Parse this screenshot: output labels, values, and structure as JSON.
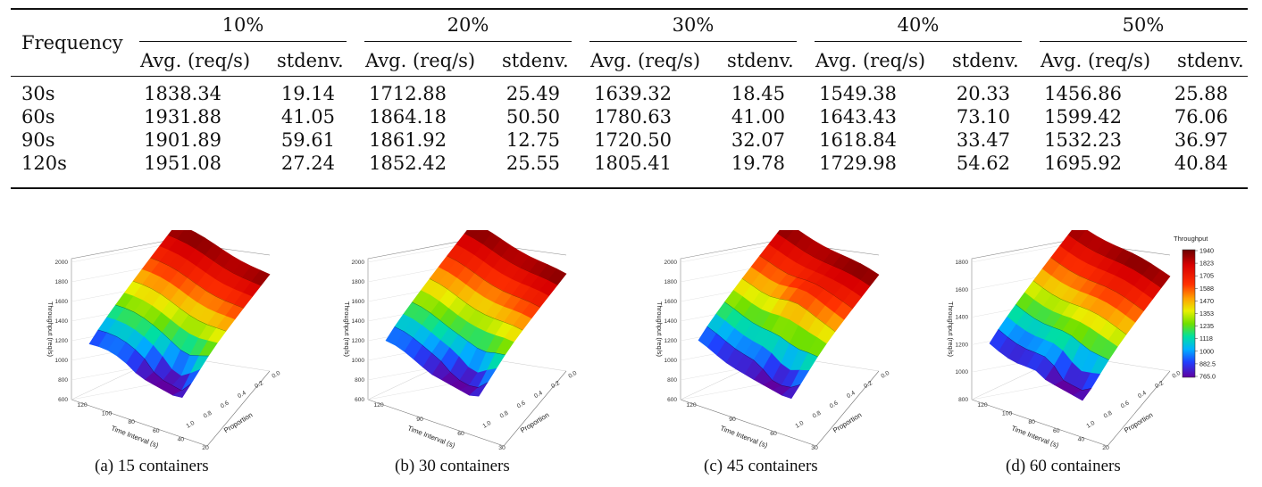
{
  "table": {
    "row_header": "Frequency",
    "groups": [
      "10%",
      "20%",
      "30%",
      "40%",
      "50%"
    ],
    "subheaders": [
      "Avg. (req/s)",
      "stdenv."
    ],
    "rows": [
      {
        "freq": "30s",
        "vals": [
          "1838.34",
          "19.14",
          "1712.88",
          "25.49",
          "1639.32",
          "18.45",
          "1549.38",
          "20.33",
          "1456.86",
          "25.88"
        ]
      },
      {
        "freq": "60s",
        "vals": [
          "1931.88",
          "41.05",
          "1864.18",
          "50.50",
          "1780.63",
          "41.00",
          "1643.43",
          "73.10",
          "1599.42",
          "76.06"
        ]
      },
      {
        "freq": "90s",
        "vals": [
          "1901.89",
          "59.61",
          "1861.92",
          "12.75",
          "1720.50",
          "32.07",
          "1618.84",
          "33.47",
          "1532.23",
          "36.97"
        ]
      },
      {
        "freq": "120s",
        "vals": [
          "1951.08",
          "27.24",
          "1852.42",
          "25.55",
          "1805.41",
          "19.78",
          "1729.98",
          "54.62",
          "1695.92",
          "40.84"
        ]
      }
    ]
  },
  "figures": [
    {
      "caption": "(a)  15 containers",
      "z_label": "Throughput (req/s)",
      "x_label": "Time Interval (s)",
      "y_label": "Proportion",
      "z_ticks": [
        "2000",
        "1800",
        "1600",
        "1400",
        "1200",
        "1000",
        "800",
        "600"
      ],
      "x_ticks": [
        "120",
        "100",
        "80",
        "60",
        "40",
        "20"
      ],
      "y_ticks": [
        "0.0",
        "0.2",
        "0.4",
        "0.6",
        "0.8",
        "1.0"
      ]
    },
    {
      "caption": "(b)  30 containers",
      "z_label": "Throughput (req/s)",
      "x_label": "Time Interval (s)",
      "y_label": "Proportion",
      "z_ticks": [
        "2000",
        "1800",
        "1600",
        "1400",
        "1200",
        "1000",
        "800",
        "600"
      ],
      "x_ticks": [
        "120",
        "90",
        "60",
        "30"
      ],
      "y_ticks": [
        "0.0",
        "0.2",
        "0.4",
        "0.6",
        "0.8",
        "1.0"
      ]
    },
    {
      "caption": "(c)  45 containers",
      "z_label": "Throughput (req/s)",
      "x_label": "Time Interval (s)",
      "y_label": "Proportion",
      "z_ticks": [
        "2000",
        "1800",
        "1600",
        "1400",
        "1200",
        "1000",
        "800",
        "600"
      ],
      "x_ticks": [
        "120",
        "90",
        "60",
        "30"
      ],
      "y_ticks": [
        "0.0",
        "0.2",
        "0.4",
        "0.6",
        "0.8",
        "1.0"
      ]
    },
    {
      "caption": "(d)  60 containers",
      "z_label": "Throughput (req/s)",
      "x_label": "Time Interval (s)",
      "y_label": "Proportion",
      "z_ticks": [
        "1800",
        "1600",
        "1400",
        "1200",
        "1000",
        "800"
      ],
      "x_ticks": [
        "120",
        "100",
        "80",
        "60",
        "40",
        "20"
      ],
      "y_ticks": [
        "0.0",
        "0.2",
        "0.4",
        "0.6",
        "0.8",
        "1.0"
      ]
    }
  ],
  "colorbar": {
    "title": "Throughput",
    "ticks": [
      "1940",
      "1823",
      "1705",
      "1588",
      "1470",
      "1353",
      "1235",
      "1118",
      "1000",
      "882.5",
      "765.0"
    ]
  }
}
